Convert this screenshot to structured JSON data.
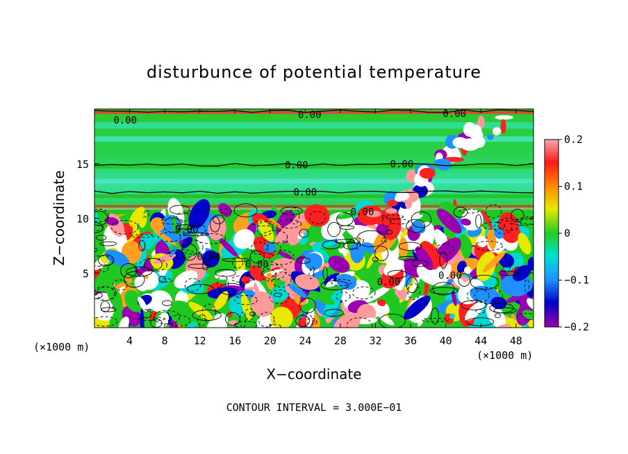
{
  "chart_data": {
    "type": "heatmap",
    "title": "disturbunce of potential temperature",
    "xlabel": "X−coordinate",
    "ylabel": "Z−coordinate",
    "x_unit": "(×1000 m)",
    "z_unit": "(×1000 m)",
    "xlim": [
      0,
      50
    ],
    "ylim": [
      0,
      20
    ],
    "x_ticks": [
      4,
      8,
      12,
      16,
      20,
      24,
      28,
      32,
      36,
      40,
      44,
      48
    ],
    "y_ticks": [
      5,
      10,
      15
    ],
    "colorbar": {
      "range": [
        -0.2,
        0.2
      ],
      "tick_values": [
        0.2,
        0.1,
        0,
        -0.1,
        -0.2
      ],
      "tick_labels": [
        "0.2",
        "0.1",
        "0",
        "−0.1",
        "−0.2"
      ]
    },
    "contour_labels": [
      {
        "text": "0.00",
        "x": 3.5,
        "z": 19.0
      },
      {
        "text": "0.00",
        "x": 24.5,
        "z": 19.5
      },
      {
        "text": "0.00",
        "x": 41.0,
        "z": 19.6
      },
      {
        "text": "0.00",
        "x": 23.0,
        "z": 14.9
      },
      {
        "text": "0.00",
        "x": 35.0,
        "z": 15.0
      },
      {
        "text": "0.00",
        "x": 24.0,
        "z": 12.4
      },
      {
        "text": "0.00",
        "x": 30.5,
        "z": 10.6
      },
      {
        "text": "0.00",
        "x": 10.5,
        "z": 9.0
      },
      {
        "text": "0.00",
        "x": 13.0,
        "z": 6.5
      },
      {
        "text": "0.00",
        "x": 18.5,
        "z": 5.8
      },
      {
        "text": "0.00",
        "x": 33.5,
        "z": 4.2
      },
      {
        "text": "0.00",
        "x": 40.5,
        "z": 4.8
      }
    ],
    "footer": "CONTOUR INTERVAL = 3.000E−01"
  }
}
